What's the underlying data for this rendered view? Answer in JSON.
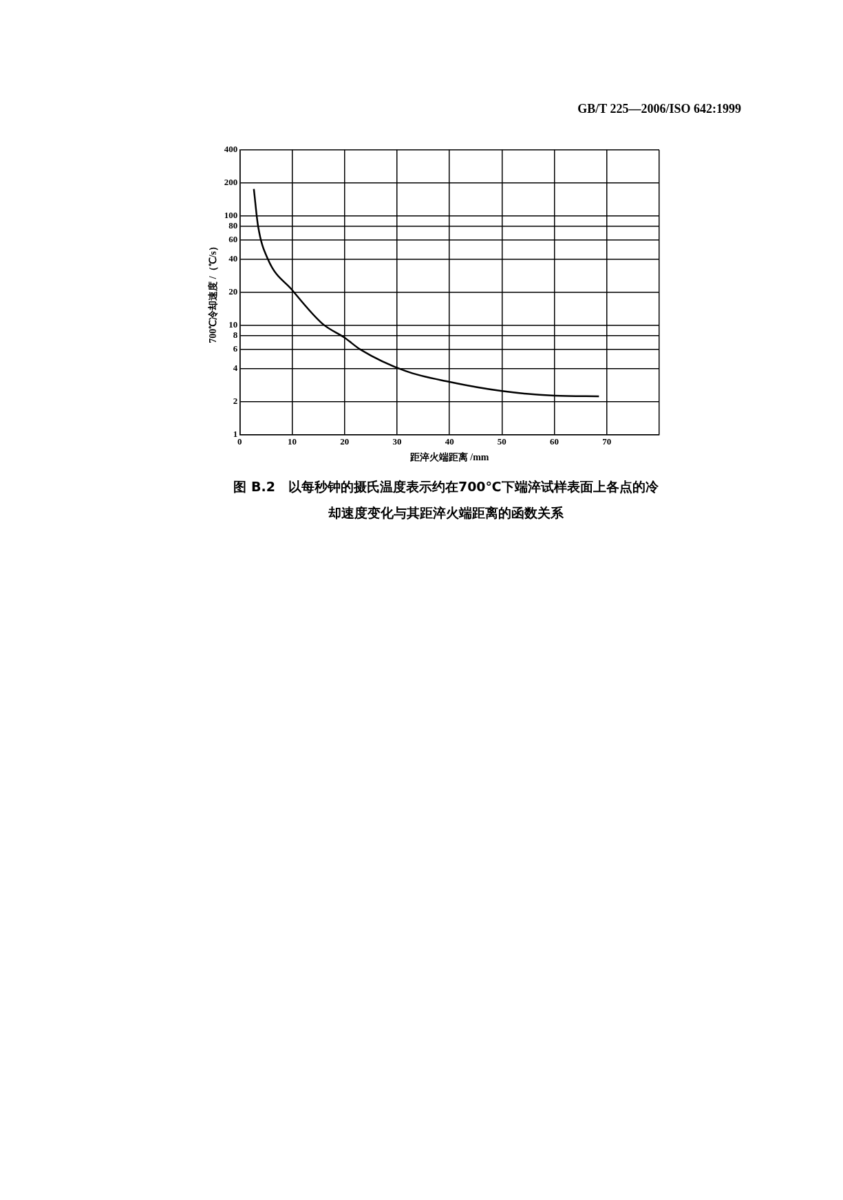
{
  "chart_data": {
    "type": "line",
    "title": "图 B.2　以每秒钟的摄氏温度表示约在700℃下端淬试样表面上各点的冷却速度变化与其距淬火端距离的函数关系",
    "xlabel": "距淬火端距离 /mm",
    "ylabel": "700℃冷却速度 /（℃/s）",
    "annotations": [
      "GB/T 225—2006/ISO 642:1999"
    ],
    "x": [
      2.7,
      3.5,
      5.4,
      10,
      15.8,
      20,
      23,
      31.7,
      40,
      50,
      60,
      68.5
    ],
    "series": [
      {
        "color": "#000000",
        "values": [
          176,
          81,
          40,
          21,
          10.3,
          7.7,
          6,
          3.8,
          3.03,
          2.5,
          2.27,
          2.24
        ]
      }
    ],
    "xlim": [
      0,
      80
    ],
    "xticks": [
      0,
      10,
      20,
      30,
      40,
      50,
      60,
      70,
      {
        "value": 80,
        "label": null
      }
    ],
    "ylim": [
      1,
      400
    ],
    "yticks": [
      1,
      2,
      4,
      6,
      8,
      10,
      20,
      40,
      60,
      80,
      100,
      200,
      400
    ],
    "log": true,
    "grid": true
  }
}
